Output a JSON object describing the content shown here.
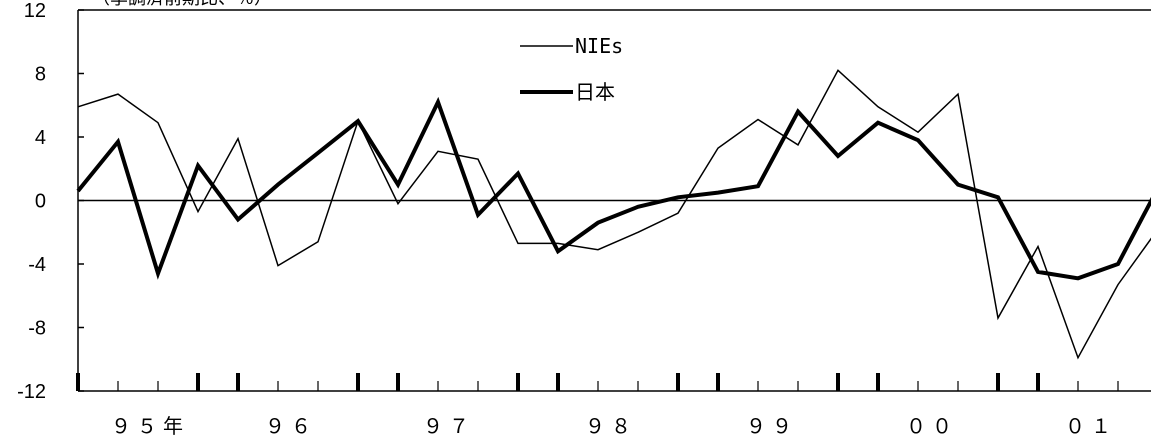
{
  "chart_data": {
    "type": "line",
    "title": "",
    "xlabel": "",
    "ylabel": "（季調済前期比、％）",
    "ylim": [
      -12,
      12
    ],
    "y_ticks": [
      "12",
      "8",
      "4",
      "0",
      "-4",
      "-8",
      "-12"
    ],
    "x_labels": [
      "９５年",
      "９６",
      "９７",
      "９８",
      "９９",
      "００",
      "０１"
    ],
    "grid": false,
    "legend": "top-center",
    "series": [
      {
        "name": "NIEs",
        "values": [
          5.9,
          6.7,
          4.9,
          -0.7,
          3.9,
          -4.1,
          -2.6,
          5.0,
          -0.2,
          3.1,
          2.6,
          -2.7,
          -2.7,
          -3.1,
          -2.0,
          -0.8,
          3.3,
          5.1,
          3.5,
          8.2,
          5.9,
          4.3,
          6.7,
          -7.4,
          -2.9,
          -9.9,
          -5.3,
          -1.8
        ]
      },
      {
        "name": "日本",
        "values": [
          0.6,
          3.7,
          -4.6,
          2.2,
          -1.2,
          1.0,
          3.0,
          5.0,
          1.0,
          6.2,
          -0.9,
          1.7,
          -3.2,
          -1.4,
          -0.4,
          0.2,
          0.5,
          0.9,
          5.6,
          2.8,
          4.9,
          3.8,
          1.0,
          0.2,
          -4.5,
          -4.9,
          -4.0,
          0.8
        ]
      }
    ]
  }
}
